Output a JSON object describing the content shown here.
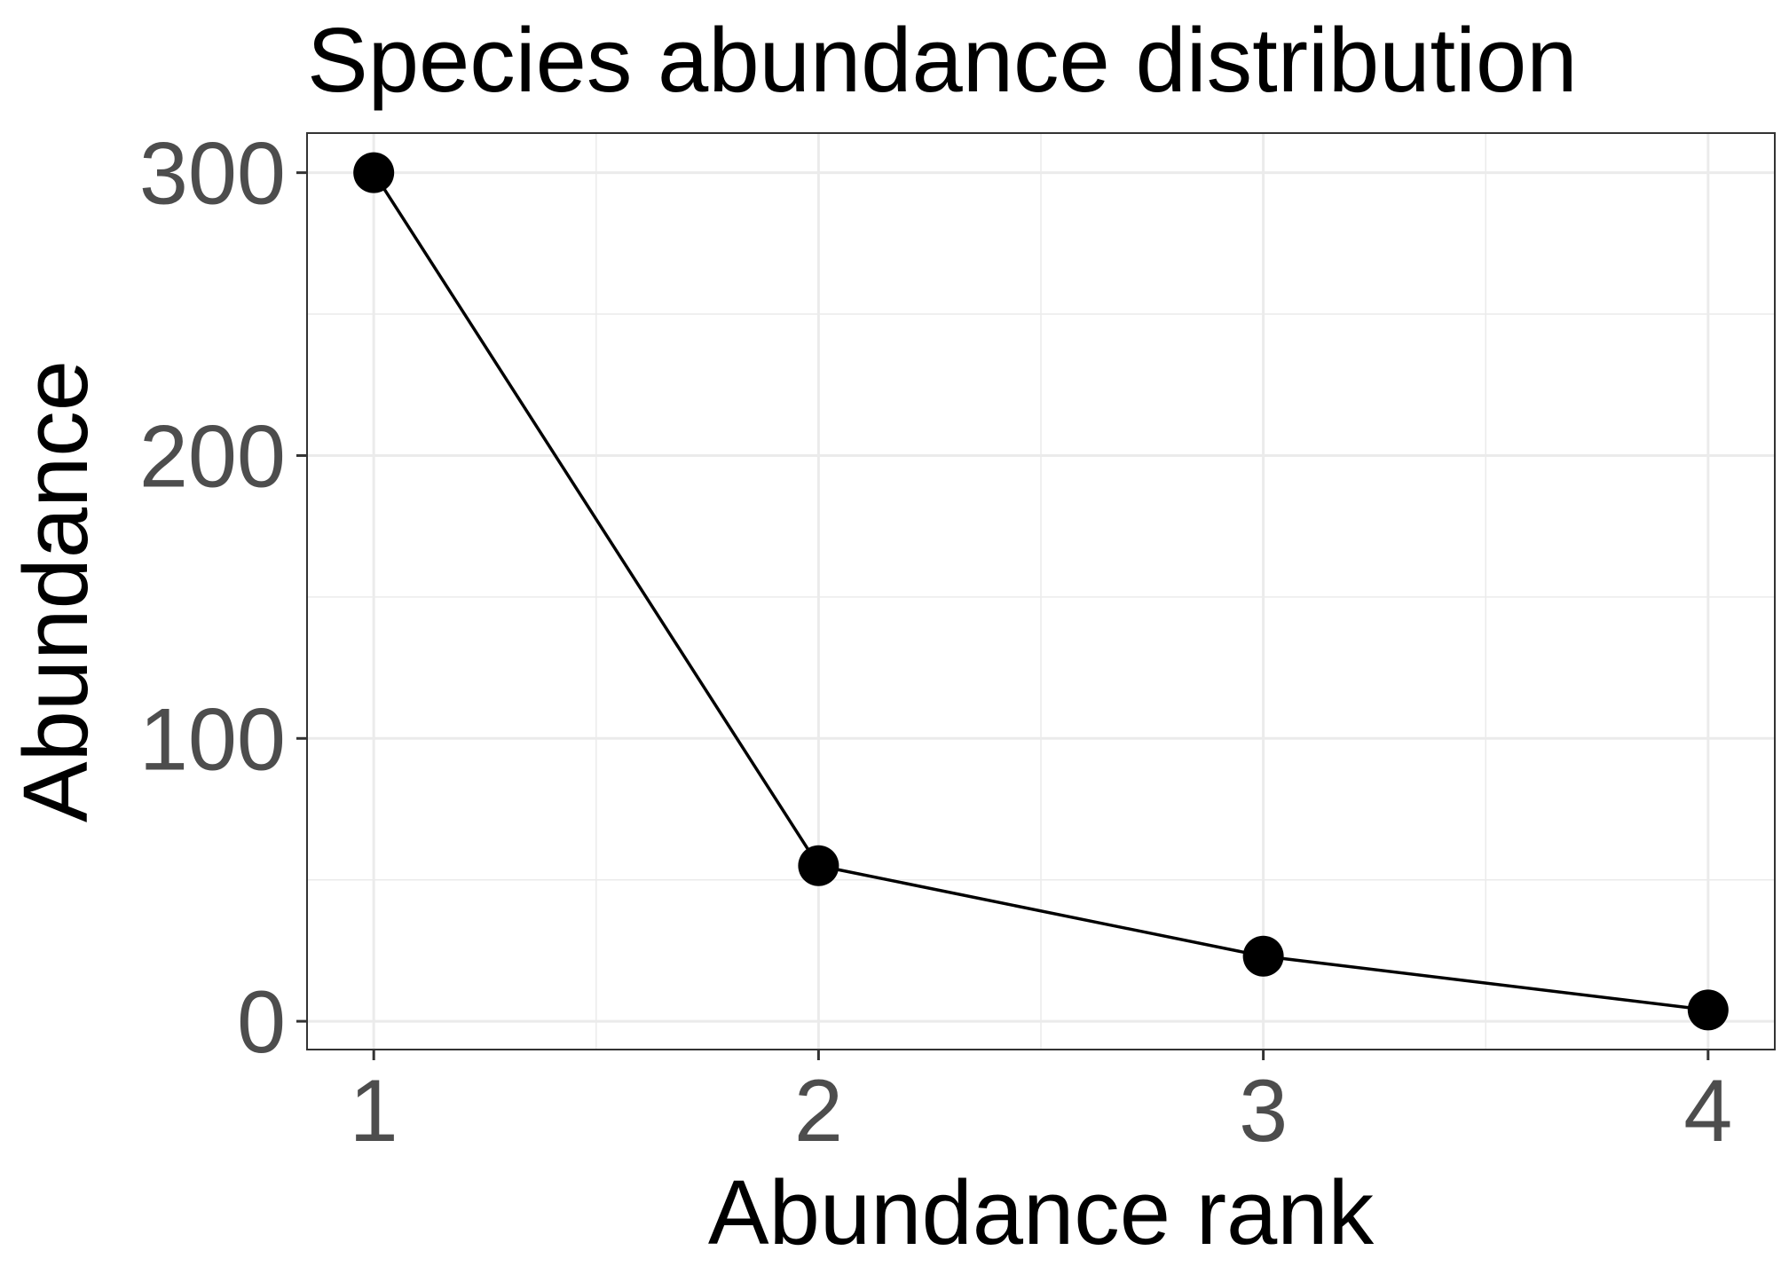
{
  "chart_data": {
    "type": "line",
    "title": "Species abundance distribution",
    "xlabel": "Abundance rank",
    "ylabel": "Abundance",
    "x": [
      1,
      2,
      3,
      4
    ],
    "series": [
      {
        "values": [
          300,
          55,
          23,
          4
        ]
      }
    ],
    "xlim": [
      0.85,
      4.15
    ],
    "ylim": [
      -10,
      314
    ],
    "x_ticks": [
      "1",
      "2",
      "3",
      "4"
    ],
    "y_ticks": [
      "0",
      "100",
      "200",
      "300"
    ],
    "y_minor_ticks": [
      50,
      150,
      250
    ],
    "grid": true,
    "theme": "black-and-white",
    "line_color": "#000000",
    "marker_color": "#000000",
    "grid_color": "#ebebeb"
  }
}
